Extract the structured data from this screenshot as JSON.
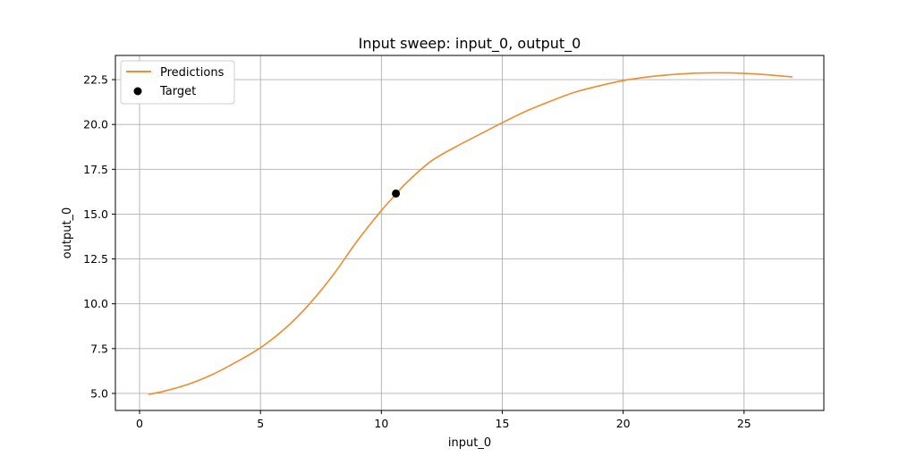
{
  "chart_data": {
    "type": "line",
    "title": "Input sweep: input_0, output_0",
    "xlabel": "input_0",
    "ylabel": "output_0",
    "xlim": [
      -1.0,
      28.3
    ],
    "ylim": [
      4.05,
      23.85
    ],
    "grid": true,
    "legend_position": "top-left",
    "x_ticks": [
      0,
      5,
      10,
      15,
      20,
      25
    ],
    "x_tick_labels": [
      "0",
      "5",
      "10",
      "15",
      "20",
      "25"
    ],
    "y_ticks": [
      5.0,
      7.5,
      10.0,
      12.5,
      15.0,
      17.5,
      20.0,
      22.5
    ],
    "y_tick_labels": [
      "5.0",
      "7.5",
      "10.0",
      "12.5",
      "15.0",
      "17.5",
      "20.0",
      "22.5"
    ],
    "series": [
      {
        "name": "Predictions",
        "kind": "line",
        "color": "#ee8c2f",
        "x": [
          0.37,
          1,
          2,
          3,
          4,
          5,
          6,
          7,
          8,
          9,
          10,
          10.6,
          11,
          12,
          13,
          14,
          15,
          16,
          17,
          18,
          19,
          20,
          21,
          22,
          23,
          24,
          25,
          26,
          27
        ],
        "y": [
          4.95,
          5.12,
          5.5,
          6.05,
          6.75,
          7.55,
          8.6,
          9.95,
          11.6,
          13.5,
          15.2,
          16.1,
          16.7,
          17.9,
          18.7,
          19.4,
          20.1,
          20.75,
          21.3,
          21.8,
          22.15,
          22.45,
          22.65,
          22.78,
          22.86,
          22.88,
          22.85,
          22.77,
          22.65
        ]
      },
      {
        "name": "Target",
        "kind": "scatter",
        "color": "#000000",
        "x": [
          10.6
        ],
        "y": [
          16.15
        ]
      }
    ]
  }
}
